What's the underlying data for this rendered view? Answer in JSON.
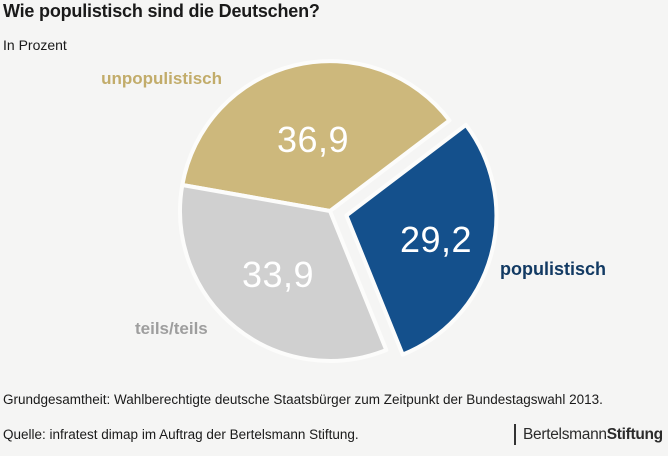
{
  "header": {
    "title": "Wie populistisch sind die Deutschen?",
    "unit_label": "In Prozent"
  },
  "chart_data": {
    "type": "pie",
    "title": "Wie populistisch sind die Deutschen?",
    "unit": "In Prozent",
    "start_angle_deg": 170,
    "background": "#f5f5f4",
    "separator_color": "#fcfcfb",
    "value_text_color": "#ffffff",
    "slices": [
      {
        "label": "unpopulistisch",
        "value": 36.9,
        "display": "36,9",
        "color": "#cdb87c",
        "label_color": "#c2ac6a",
        "exploded": false,
        "label_r": 0.49
      },
      {
        "label": "populistisch",
        "value": 29.2,
        "display": "29,2",
        "color": "#14508c",
        "label_color": "#123a63",
        "exploded": true,
        "label_r": 0.62
      },
      {
        "label": "teils/teils",
        "value": 33.9,
        "display": "33,9",
        "color": "#d0d0d0",
        "label_color": "#9e9e9e",
        "exploded": false,
        "label_r": 0.55
      }
    ]
  },
  "footer": {
    "population_note": "Grundgesamtheit: Wahlberechtigte deutsche Staatsbürger zum Zeitpunkt der Bundestagswahl 2013.",
    "source": "Quelle: infratest dimap im Auftrag der Bertelsmann Stiftung."
  },
  "logo": {
    "part1": "Bertelsmann",
    "part2": "Stiftung"
  }
}
